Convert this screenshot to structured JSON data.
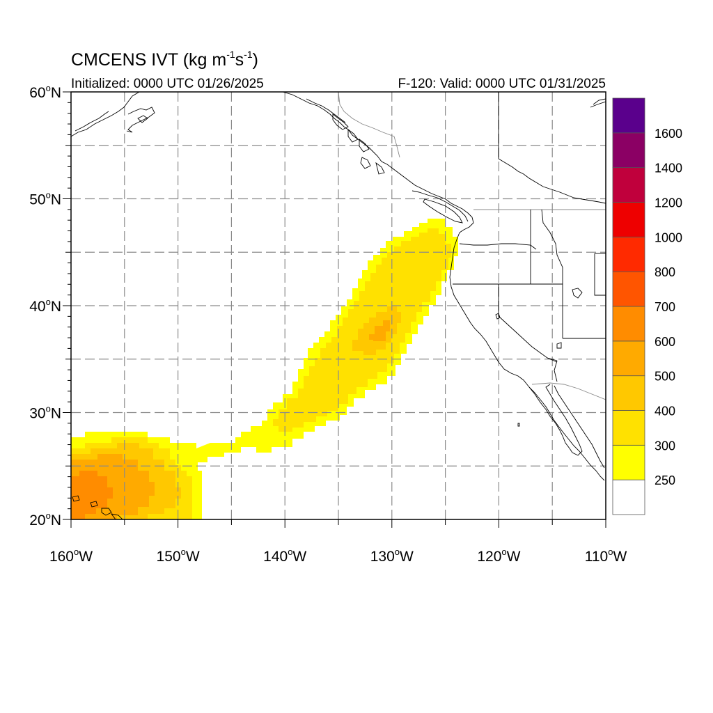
{
  "title": {
    "model": "CMCENS",
    "var": "IVT",
    "unit_prefix": "kg m",
    "unit_exp1": "-1",
    "unit_s": "s",
    "unit_exp2": "-1",
    "unit_close": ")"
  },
  "subtitle_left": "Initialized: 0000 UTC 01/26/2025",
  "subtitle_right": "F-120: Valid: 0000 UTC 01/31/2025",
  "axes": {
    "lat_labels": [
      {
        "value": 60,
        "text": "60"
      },
      {
        "value": 50,
        "text": "50"
      },
      {
        "value": 40,
        "text": "40"
      },
      {
        "value": 30,
        "text": "30"
      },
      {
        "value": 20,
        "text": "20"
      }
    ],
    "lat_suffix": "N",
    "lon_labels": [
      {
        "value": -160,
        "text": "160"
      },
      {
        "value": -150,
        "text": "150"
      },
      {
        "value": -140,
        "text": "140"
      },
      {
        "value": -130,
        "text": "130"
      },
      {
        "value": -120,
        "text": "120"
      },
      {
        "value": -110,
        "text": "110"
      }
    ],
    "lon_suffix": "W",
    "lat_range": [
      20,
      60
    ],
    "lon_range": [
      -160,
      -110
    ],
    "grid_lines": true
  },
  "colorbar": {
    "levels": [
      {
        "min": 0,
        "color": "#ffffff"
      },
      {
        "min": 250,
        "color": "#ffff00"
      },
      {
        "min": 300,
        "color": "#ffe100"
      },
      {
        "min": 400,
        "color": "#ffc800"
      },
      {
        "min": 500,
        "color": "#ffaa00"
      },
      {
        "min": 600,
        "color": "#ff8c00"
      },
      {
        "min": 700,
        "color": "#ff5500"
      },
      {
        "min": 800,
        "color": "#ff2a00"
      },
      {
        "min": 1000,
        "color": "#ee0000"
      },
      {
        "min": 1200,
        "color": "#c0003c"
      },
      {
        "min": 1400,
        "color": "#8b0064"
      },
      {
        "min": 1600,
        "color": "#5a008c"
      }
    ],
    "labels": [
      "250",
      "300",
      "400",
      "500",
      "600",
      "700",
      "800",
      "1000",
      "1200",
      "1400",
      "1600"
    ]
  }
}
